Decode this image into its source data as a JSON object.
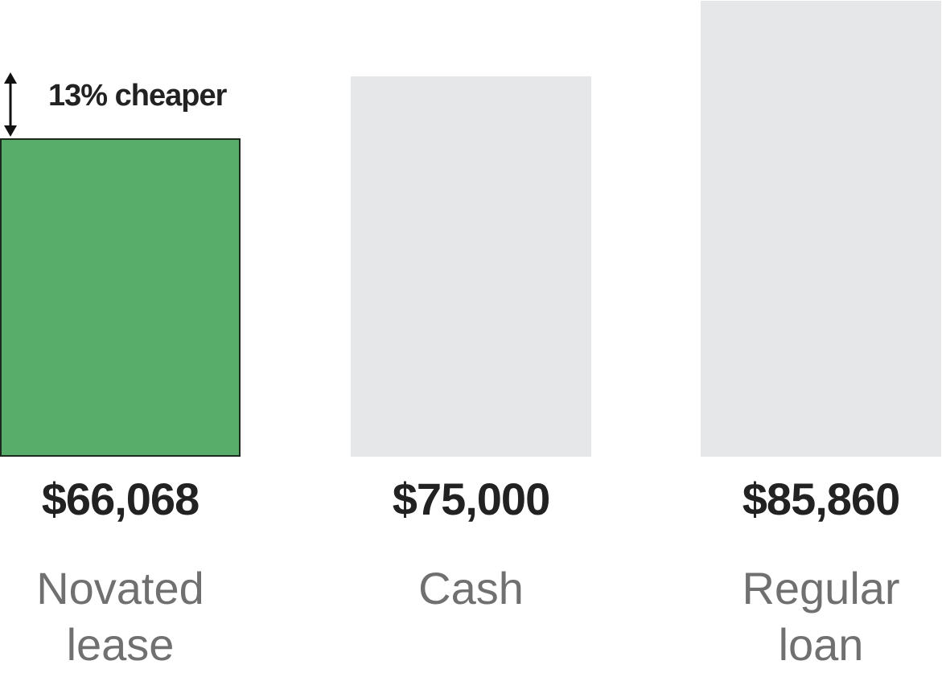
{
  "chart_data": {
    "type": "bar",
    "categories": [
      "Novated lease",
      "Cash",
      "Regular loan"
    ],
    "values": [
      66068,
      75000,
      85860
    ],
    "value_labels": [
      "$66,068",
      "$75,000",
      "$85,860"
    ],
    "colors": [
      "#58ad6a",
      "#e6e7e9",
      "#e6e7e9"
    ],
    "ylim": [
      20000,
      86000
    ],
    "annotation": "13% cheaper"
  }
}
